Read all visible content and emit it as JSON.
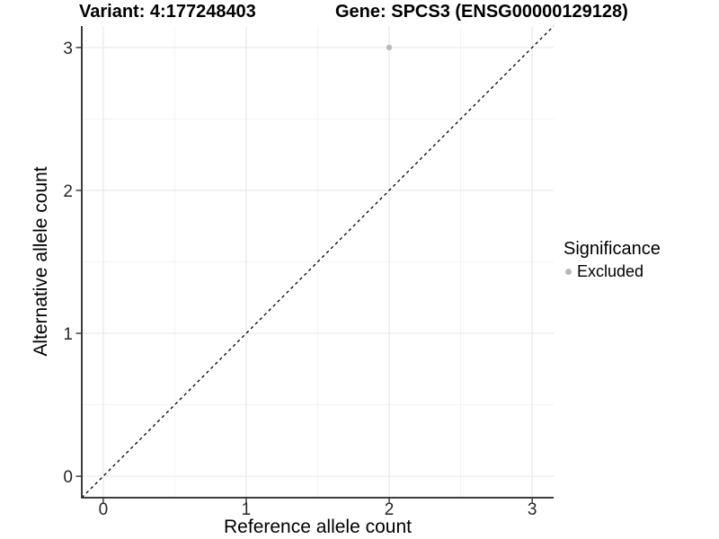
{
  "chart_data": {
    "type": "scatter",
    "title_left": "Variant: 4:177248403",
    "title_right": "Gene: SPCS3 (ENSG00000129128)",
    "xlabel": "Reference allele count",
    "ylabel": "Alternative allele count",
    "xlim": [
      -0.15,
      3.15
    ],
    "ylim": [
      -0.15,
      3.15
    ],
    "x_ticks": [
      0,
      1,
      2,
      3
    ],
    "y_ticks": [
      0,
      1,
      2,
      3
    ],
    "x_minor_gridlines": [
      0.5,
      1.5,
      2.5
    ],
    "y_minor_gridlines": [
      0.5,
      1.5,
      2.5
    ],
    "grid": "major+minor",
    "legend_position": "right",
    "legend": {
      "title": "Significance",
      "items": [
        {
          "label": "Excluded",
          "color": "#b9b9b9"
        }
      ]
    },
    "series": [
      {
        "name": "Excluded",
        "color": "#b9b9b9",
        "points": [
          {
            "x": 2,
            "y": 3
          }
        ]
      }
    ],
    "reference_line": {
      "equation": "y = x",
      "style": "dashed",
      "color": "#000000"
    },
    "colors": {
      "major_gridline": "#e7e7e7",
      "minor_gridline": "#f3f3f3",
      "axis_line": "#3c3c3c",
      "tick_mark": "#333333",
      "tick_label": "#262626"
    }
  }
}
